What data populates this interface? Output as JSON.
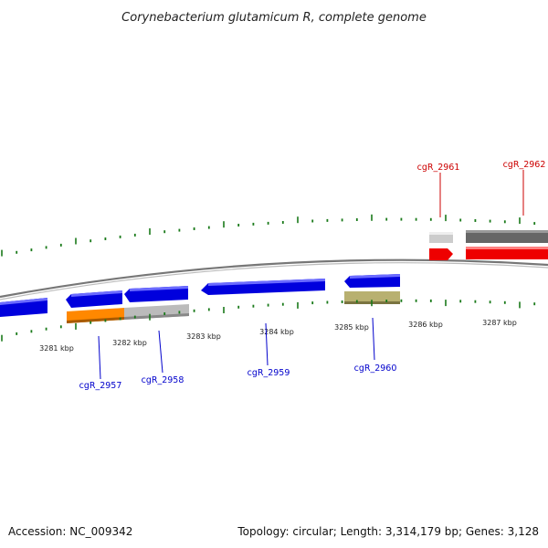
{
  "title": "Corynebacterium glutamicum R, complete genome",
  "footer": {
    "accession": "Accession: NC_009342",
    "topology": "Topology: circular; Length: 3,314,179 bp; Genes: 3,128"
  },
  "colors": {
    "backbone": "#888888",
    "tick": "#1a7a1a",
    "fwd_label": "#cc0000",
    "rev_label": "#0000cc",
    "gene_blue": "#0000dd",
    "gene_red": "#ee0000",
    "gene_orange": "#ff8800",
    "gene_grey": "#bbbbbb",
    "gene_darkgrey": "#666666",
    "gene_khaki": "#b8b070"
  },
  "kbp_labels": [
    "3281 kbp",
    "3282 kbp",
    "3283 kbp",
    "3284 kbp",
    "3285 kbp",
    "3286 kbp",
    "3287 kbp"
  ],
  "gene_labels": {
    "forward": [
      "cgR_2961",
      "cgR_2962"
    ],
    "reverse": [
      "cgR_2957",
      "cgR_2958",
      "cgR_2959",
      "cgR_2960"
    ]
  }
}
